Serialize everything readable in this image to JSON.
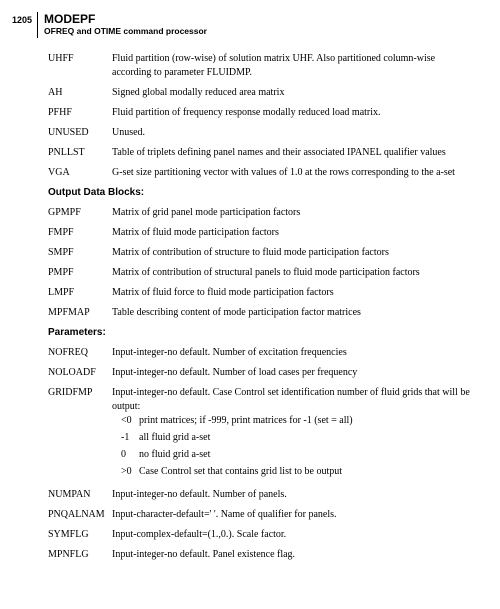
{
  "page_number": "1205",
  "title": "MODEPF",
  "subtitle": "OFREQ and OTIME command processor",
  "sections": [
    {
      "heading": null,
      "rows": [
        {
          "term": "UHFF",
          "def": "Fluid partition (row-wise) of solution matrix UHF. Also partitioned column-wise according to parameter FLUIDMP."
        },
        {
          "term": "AH",
          "def": "Signed global modally reduced area matrix"
        },
        {
          "term": "PFHF",
          "def": "Fluid partition of frequency response modally reduced load matrix."
        },
        {
          "term": "UNUSED",
          "def": "Unused."
        },
        {
          "term": "PNLLST",
          "def": "Table of triplets defining panel names and their associated IPANEL qualifier values"
        },
        {
          "term": "VGA",
          "def": "G-set size partitioning vector with values of 1.0 at the rows corresponding to the a-set"
        }
      ]
    },
    {
      "heading": "Output Data Blocks:",
      "rows": [
        {
          "term": "GPMPF",
          "def": "Matrix of grid panel mode participation factors"
        },
        {
          "term": "FMPF",
          "def": "Matrix of fluid mode participation factors"
        },
        {
          "term": "SMPF",
          "def": "Matrix of contribution of structure to fluid mode participation factors"
        },
        {
          "term": "PMPF",
          "def": "Matrix of contribution of structural panels to fluid mode participation factors"
        },
        {
          "term": "LMPF",
          "def": "Matrix of fluid force to fluid mode participation factors"
        },
        {
          "term": "MPFMAP",
          "def": "Table describing content of mode participation factor matrices"
        }
      ]
    },
    {
      "heading": "Parameters:",
      "rows": [
        {
          "term": "NOFREQ",
          "def": "Input-integer-no default. Number of excitation frequencies"
        },
        {
          "term": "NOLOADF",
          "def": "Input-integer-no default. Number of load cases per frequency"
        },
        {
          "term": "GRIDFMP",
          "def": "Input-integer-no default. Case Control set identification number of fluid grids that will be output:",
          "subs": [
            {
              "k": "<0",
              "v": "print matrices; if -999, print matrices for -1 (set = all)"
            },
            {
              "k": "-1",
              "v": "all fluid grid a-set"
            },
            {
              "k": "0",
              "v": "no fluid grid a-set"
            },
            {
              "k": ">0",
              "v": "Case Control set that contains grid list to be output"
            }
          ]
        },
        {
          "term": "NUMPAN",
          "def": "Input-integer-no default. Number of panels."
        },
        {
          "term": "PNQALNAM",
          "def": "Input-character-default=' '. Name of qualifier for panels."
        },
        {
          "term": "SYMFLG",
          "def": "Input-complex-default=(1.,0.). Scale factor."
        },
        {
          "term": "MPNFLG",
          "def": "Input-integer-no default. Panel existence flag."
        }
      ]
    }
  ]
}
